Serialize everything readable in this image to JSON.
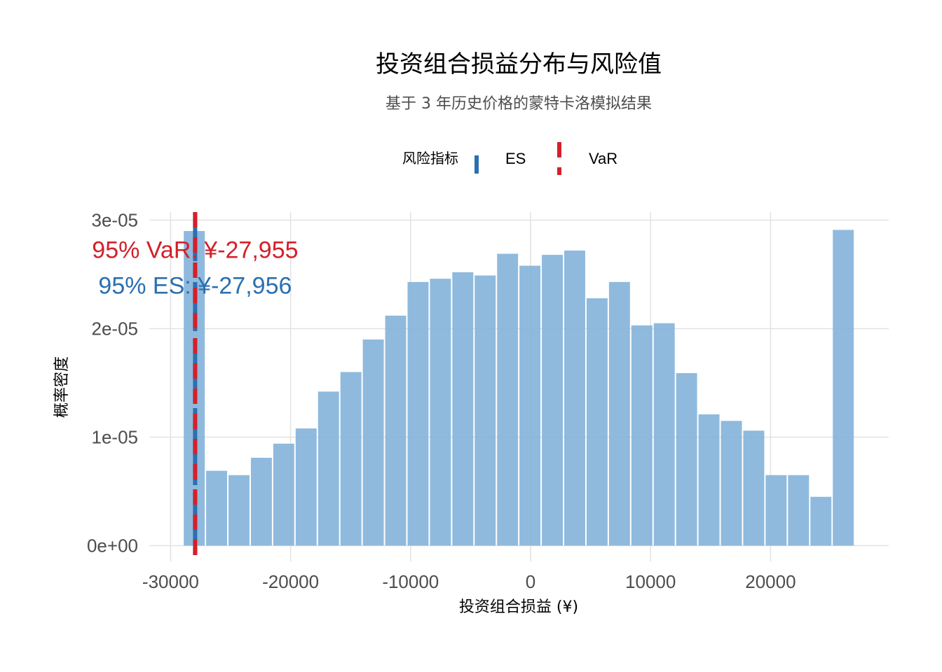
{
  "chart_data": {
    "type": "bar",
    "title": "投资组合损益分布与风险值",
    "subtitle": "基于 3 年历史价格的蒙特卡洛模拟结果",
    "xlabel": "投资组合损益 (¥)",
    "ylabel": "概率密度",
    "xlim": [
      -30000,
      30000
    ],
    "ylim": [
      0,
      3.1e-05
    ],
    "x_ticks": [
      {
        "value": -30000,
        "label": "-30000"
      },
      {
        "value": -20000,
        "label": "-20000"
      },
      {
        "value": -10000,
        "label": "-10000"
      },
      {
        "value": 0,
        "label": "0"
      },
      {
        "value": 10000,
        "label": "10000"
      },
      {
        "value": 20000,
        "label": "20000"
      }
    ],
    "y_ticks": [
      {
        "value": 0,
        "label": "0e+00"
      },
      {
        "value": 1e-05,
        "label": "1e-05"
      },
      {
        "value": 2e-05,
        "label": "2e-05"
      },
      {
        "value": 3e-05,
        "label": "3e-05"
      }
    ],
    "bin_width": 1865,
    "bins": [
      {
        "x": -28029,
        "density": 2.9e-05
      },
      {
        "x": -26164,
        "density": 6.9e-06
      },
      {
        "x": -24299,
        "density": 6.5e-06
      },
      {
        "x": -22434,
        "density": 8.1e-06
      },
      {
        "x": -20569,
        "density": 9.4e-06
      },
      {
        "x": -18704,
        "density": 1.08e-05
      },
      {
        "x": -16838,
        "density": 1.42e-05
      },
      {
        "x": -14973,
        "density": 1.6e-05
      },
      {
        "x": -13108,
        "density": 1.9e-05
      },
      {
        "x": -11243,
        "density": 2.12e-05
      },
      {
        "x": -9378,
        "density": 2.43e-05
      },
      {
        "x": -7512,
        "density": 2.46e-05
      },
      {
        "x": -5647,
        "density": 2.52e-05
      },
      {
        "x": -3782,
        "density": 2.49e-05
      },
      {
        "x": -1917,
        "density": 2.69e-05
      },
      {
        "x": -52,
        "density": 2.58e-05
      },
      {
        "x": 1813,
        "density": 2.68e-05
      },
      {
        "x": 3679,
        "density": 2.72e-05
      },
      {
        "x": 5544,
        "density": 2.28e-05
      },
      {
        "x": 7409,
        "density": 2.43e-05
      },
      {
        "x": 9274,
        "density": 2.03e-05
      },
      {
        "x": 11139,
        "density": 2.05e-05
      },
      {
        "x": 13004,
        "density": 1.59e-05
      },
      {
        "x": 14870,
        "density": 1.21e-05
      },
      {
        "x": 16735,
        "density": 1.15e-05
      },
      {
        "x": 18600,
        "density": 1.06e-05
      },
      {
        "x": 20465,
        "density": 6.5e-06
      },
      {
        "x": 22330,
        "density": 6.5e-06
      },
      {
        "x": 24196,
        "density": 4.5e-06
      },
      {
        "x": 26061,
        "density": 2.91e-05
      }
    ],
    "legend": {
      "title": "风险指标",
      "placement": "top-center",
      "items": [
        {
          "name": "ES",
          "color": "#2b6fb0",
          "style": "solid"
        },
        {
          "name": "VaR",
          "color": "#d4202a",
          "style": "dashed"
        }
      ]
    },
    "lines": [
      {
        "name": "ES",
        "x": -27956,
        "color": "#2b6fb0"
      },
      {
        "name": "VaR",
        "x": -27955,
        "color": "#d4202a"
      }
    ],
    "annotations": [
      {
        "text": "95% VaR: ¥-27,955",
        "color": "#d4202a",
        "y": 2.73e-05
      },
      {
        "text": "95% ES: ¥-27,956",
        "color": "#2b6fb0",
        "y": 2.4e-05
      }
    ],
    "bar_color": "#7fb1d8",
    "grid": true
  }
}
